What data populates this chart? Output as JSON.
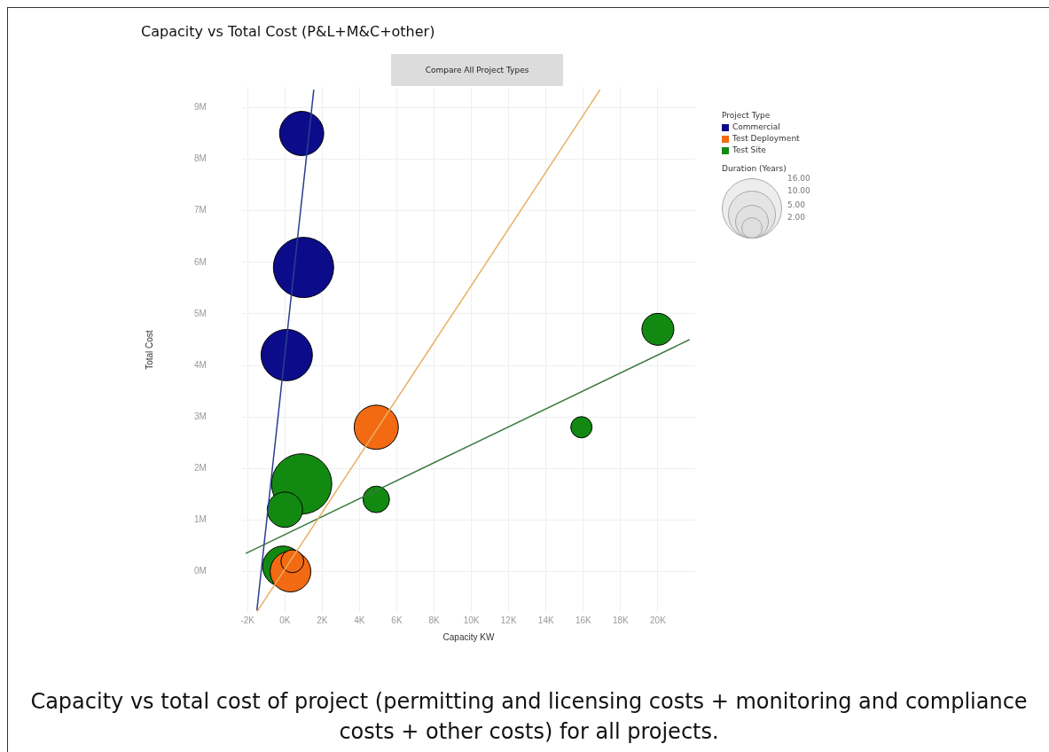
{
  "chart_data": {
    "type": "bubble",
    "title": "Capacity vs Total Cost (P&L+M&C+other)",
    "xlabel": "Capacity KW",
    "ylabel": "Total Cost",
    "legend_title": "Project Type",
    "legend": "top right",
    "grid": true,
    "xlim": [
      -2.3,
      22
    ],
    "ylim": [
      -0.8,
      9.4
    ],
    "xticks": [
      {
        "value": -2,
        "label": "-2K"
      },
      {
        "value": 0,
        "label": "0K"
      },
      {
        "value": 2,
        "label": "2K"
      },
      {
        "value": 4,
        "label": "4K"
      },
      {
        "value": 6,
        "label": "6K"
      },
      {
        "value": 8,
        "label": "8K"
      },
      {
        "value": 10,
        "label": "10K"
      },
      {
        "value": 12,
        "label": "12K"
      },
      {
        "value": 14,
        "label": "14K"
      },
      {
        "value": 16,
        "label": "16K"
      },
      {
        "value": 18,
        "label": "18K"
      },
      {
        "value": 20,
        "label": "20K"
      }
    ],
    "yticks": [
      {
        "value": 0,
        "label": "0M"
      },
      {
        "value": 1,
        "label": "1M"
      },
      {
        "value": 2,
        "label": "2M"
      },
      {
        "value": 3,
        "label": "3M"
      },
      {
        "value": 4,
        "label": "4M"
      },
      {
        "value": 5,
        "label": "5M"
      },
      {
        "value": 6,
        "label": "6M"
      },
      {
        "value": 7,
        "label": "7M"
      },
      {
        "value": 8,
        "label": "8M"
      },
      {
        "value": 9,
        "label": "9M"
      }
    ],
    "size_legend": [
      {
        "value": 2,
        "label": "2.00"
      },
      {
        "value": 5,
        "label": "5.00"
      },
      {
        "value": 10,
        "label": "10.00"
      },
      {
        "value": 16,
        "label": "16.00"
      }
    ],
    "series": [
      {
        "name": "Commercial",
        "color": "#0c0c8a",
        "x": [
          0.9,
          1.0,
          0.1
        ],
        "values": [
          8.5,
          5.9,
          4.2
        ],
        "sizes": [
          8.6,
          16,
          11.6
        ]
      },
      {
        "name": "Test Deployment",
        "color": "#f26a12",
        "x": [
          4.9,
          0.3,
          0.4
        ],
        "values": [
          2.8,
          0.0,
          0.2
        ],
        "sizes": [
          8.6,
          7.3,
          2.3
        ]
      },
      {
        "name": "Test Site",
        "color": "#128a12",
        "x": [
          0.9,
          0.0,
          -0.1,
          4.9,
          15.9,
          20.0
        ],
        "values": [
          1.7,
          1.2,
          0.1,
          1.4,
          2.8,
          4.7
        ],
        "sizes": [
          16,
          5.5,
          7.3,
          3.1,
          2,
          4.5
        ]
      },
      {
        "type": "line",
        "color": "#2a3f8f",
        "x": [
          -1.5,
          1.55
        ],
        "values": [
          -0.75,
          9.35
        ]
      },
      {
        "type": "line",
        "color": "#e8b060",
        "x": [
          -1.5,
          16.9
        ],
        "values": [
          -0.78,
          9.35
        ]
      },
      {
        "type": "line",
        "color": "#3a7a40",
        "x": [
          -2.1,
          21.7
        ],
        "values": [
          0.35,
          4.5
        ]
      }
    ],
    "annotations": [
      "Compare All Project Types",
      "Capacity vs total cost of project (permitting and licensing costs + monitoring and compliance costs + other costs) for all projects.",
      "Duration (Years)"
    ]
  }
}
